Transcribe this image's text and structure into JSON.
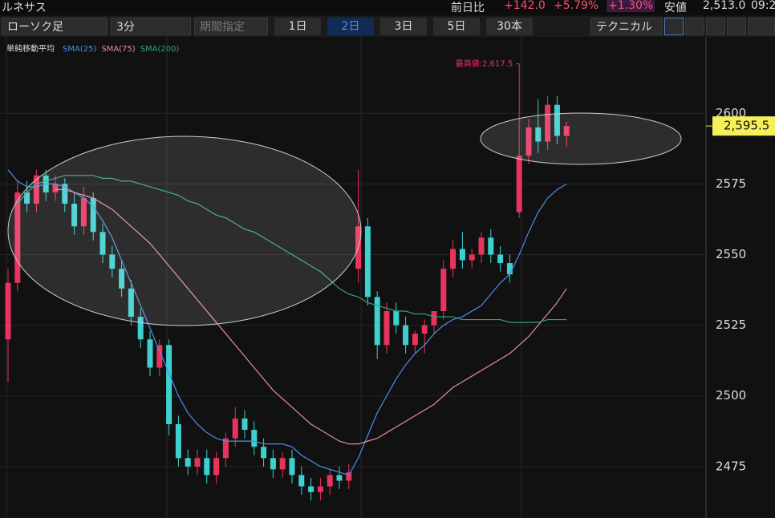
{
  "header": {
    "name": "ルネサス",
    "change_label": "前日比",
    "change": "+142.0",
    "change_pct": "+5.79%",
    "index_pct": "+1.30%",
    "low_label": "安値",
    "low": "2,513.0",
    "time": "09:2"
  },
  "toolbar": {
    "chart_kind": "ローソク足",
    "interval": "3分",
    "period": "期間指定",
    "ranges": [
      "1日",
      "2日",
      "3日",
      "5日",
      "30本"
    ],
    "active_range": 1,
    "technical": "テクニカル"
  },
  "chart_data": {
    "type": "candlestick",
    "legend_title": "単純移動平均",
    "ylim": [
      2456.8,
      2627.6
    ],
    "yticks": [
      2600,
      2575,
      2550,
      2525,
      2500,
      2475
    ],
    "up_color": "#e8335f",
    "down_color": "#3ecfcf",
    "open": [
      2520,
      2540,
      2572,
      2568,
      2578,
      2572,
      2575,
      2568,
      2560,
      2570,
      2558,
      2550,
      2545,
      2538,
      2528,
      2520,
      2510,
      2518,
      2490,
      2478,
      2475,
      2478,
      2472,
      2478,
      2485,
      2492,
      2488,
      2482,
      2478,
      2474,
      2478,
      2472,
      2468,
      2466,
      2468,
      2472,
      2470,
      2545,
      2560,
      2535,
      2518,
      2530,
      2525,
      2518,
      2522,
      2525,
      2530,
      2545,
      2552,
      2548,
      2550,
      2556,
      2550,
      2547,
      2565,
      2585,
      2595,
      2590,
      2603,
      2592
    ],
    "high": [
      2545,
      2576,
      2576,
      2580,
      2580,
      2578,
      2577,
      2572,
      2574,
      2572,
      2561,
      2553,
      2548,
      2541,
      2531,
      2523,
      2520,
      2520,
      2493,
      2481,
      2481,
      2481,
      2480,
      2487,
      2496,
      2495,
      2491,
      2485,
      2481,
      2480,
      2481,
      2475,
      2471,
      2471,
      2474,
      2475,
      2476,
      2580,
      2563,
      2537,
      2533,
      2533,
      2528,
      2523,
      2527,
      2530,
      2548,
      2555,
      2558,
      2552,
      2558,
      2559,
      2553,
      2550,
      2617.5,
      2598,
      2605,
      2606,
      2606,
      2597
    ],
    "low": [
      2505,
      2537,
      2565,
      2565,
      2569,
      2569,
      2565,
      2557,
      2557,
      2555,
      2547,
      2542,
      2535,
      2525,
      2517,
      2507,
      2507,
      2486,
      2475,
      2472,
      2472,
      2469,
      2469,
      2475,
      2482,
      2485,
      2479,
      2475,
      2471,
      2471,
      2469,
      2465,
      2463,
      2463,
      2465,
      2467,
      2467,
      2540,
      2532,
      2513,
      2515,
      2522,
      2515,
      2515,
      2515,
      2522,
      2527,
      2542,
      2545,
      2545,
      2547,
      2547,
      2544,
      2540,
      2563,
      2582,
      2586,
      2587,
      2589,
      2588
    ],
    "close": [
      2540,
      2572,
      2568,
      2578,
      2572,
      2575,
      2568,
      2560,
      2570,
      2558,
      2550,
      2545,
      2538,
      2528,
      2520,
      2510,
      2518,
      2490,
      2478,
      2475,
      2478,
      2472,
      2478,
      2485,
      2492,
      2488,
      2482,
      2478,
      2474,
      2478,
      2472,
      2468,
      2466,
      2468,
      2472,
      2470,
      2473,
      2560,
      2535,
      2518,
      2530,
      2525,
      2518,
      2522,
      2525,
      2530,
      2545,
      2552,
      2548,
      2550,
      2556,
      2550,
      2547,
      2543,
      2585,
      2595,
      2590,
      2603,
      2592,
      2595.5
    ],
    "series": [
      {
        "name": "SMA(25)",
        "color": "#4a8fe8",
        "values": [
          2580,
          2576,
          2574,
          2574,
          2575,
          2575,
          2574,
          2572,
          2570,
          2567,
          2562,
          2556,
          2548,
          2540,
          2532,
          2524,
          2516,
          2508,
          2500,
          2494,
          2490,
          2487,
          2485,
          2484,
          2484,
          2484,
          2484,
          2483,
          2483,
          2483,
          2482,
          2479,
          2477,
          2475,
          2474,
          2473,
          2472,
          2478,
          2486,
          2494,
          2500,
          2506,
          2511,
          2515,
          2518,
          2522,
          2525,
          2527,
          2528,
          2530,
          2532,
          2536,
          2540,
          2543,
          2550,
          2558,
          2565,
          2570,
          2573,
          2575
        ]
      },
      {
        "name": "SMA(75)",
        "color": "#e88aa8",
        "values": [
          null,
          null,
          null,
          null,
          null,
          2573,
          2573,
          2572,
          2571,
          2570,
          2568,
          2566,
          2563,
          2560,
          2557,
          2554,
          2550,
          2546,
          2542,
          2538,
          2534,
          2530,
          2526,
          2522,
          2518,
          2514,
          2510,
          2506,
          2502,
          2499,
          2496,
          2493,
          2490,
          2488,
          2486,
          2484,
          2483,
          2483,
          2484,
          2485,
          2487,
          2489,
          2491,
          2493,
          2495,
          2497,
          2500,
          2503,
          2505,
          2507,
          2509,
          2511,
          2513,
          2515,
          2518,
          2521,
          2525,
          2529,
          2533,
          2538
        ]
      },
      {
        "name": "SMA(200)",
        "color": "#2fa57f",
        "values": [
          null,
          2568,
          2572,
          2575,
          2576,
          2577,
          2578,
          2578,
          2578,
          2578,
          2577,
          2577,
          2576,
          2576,
          2575,
          2574,
          2573,
          2572,
          2571,
          2569,
          2568,
          2566,
          2564,
          2563,
          2561,
          2559,
          2558,
          2556,
          2554,
          2552,
          2550,
          2548,
          2546,
          2544,
          2541,
          2538,
          2536,
          2535,
          2533,
          2532,
          2531,
          2530,
          2530,
          2529,
          2529,
          2528,
          2528,
          2528,
          2527,
          2527,
          2527,
          2527,
          2527,
          2526,
          2526,
          2526,
          2526,
          2527,
          2527,
          2527
        ]
      }
    ],
    "high_annotation": {
      "value": 2617.5,
      "label": "最高値:2,617.5"
    },
    "last_price": {
      "value": 2595.5,
      "label": "2,595.5"
    }
  }
}
